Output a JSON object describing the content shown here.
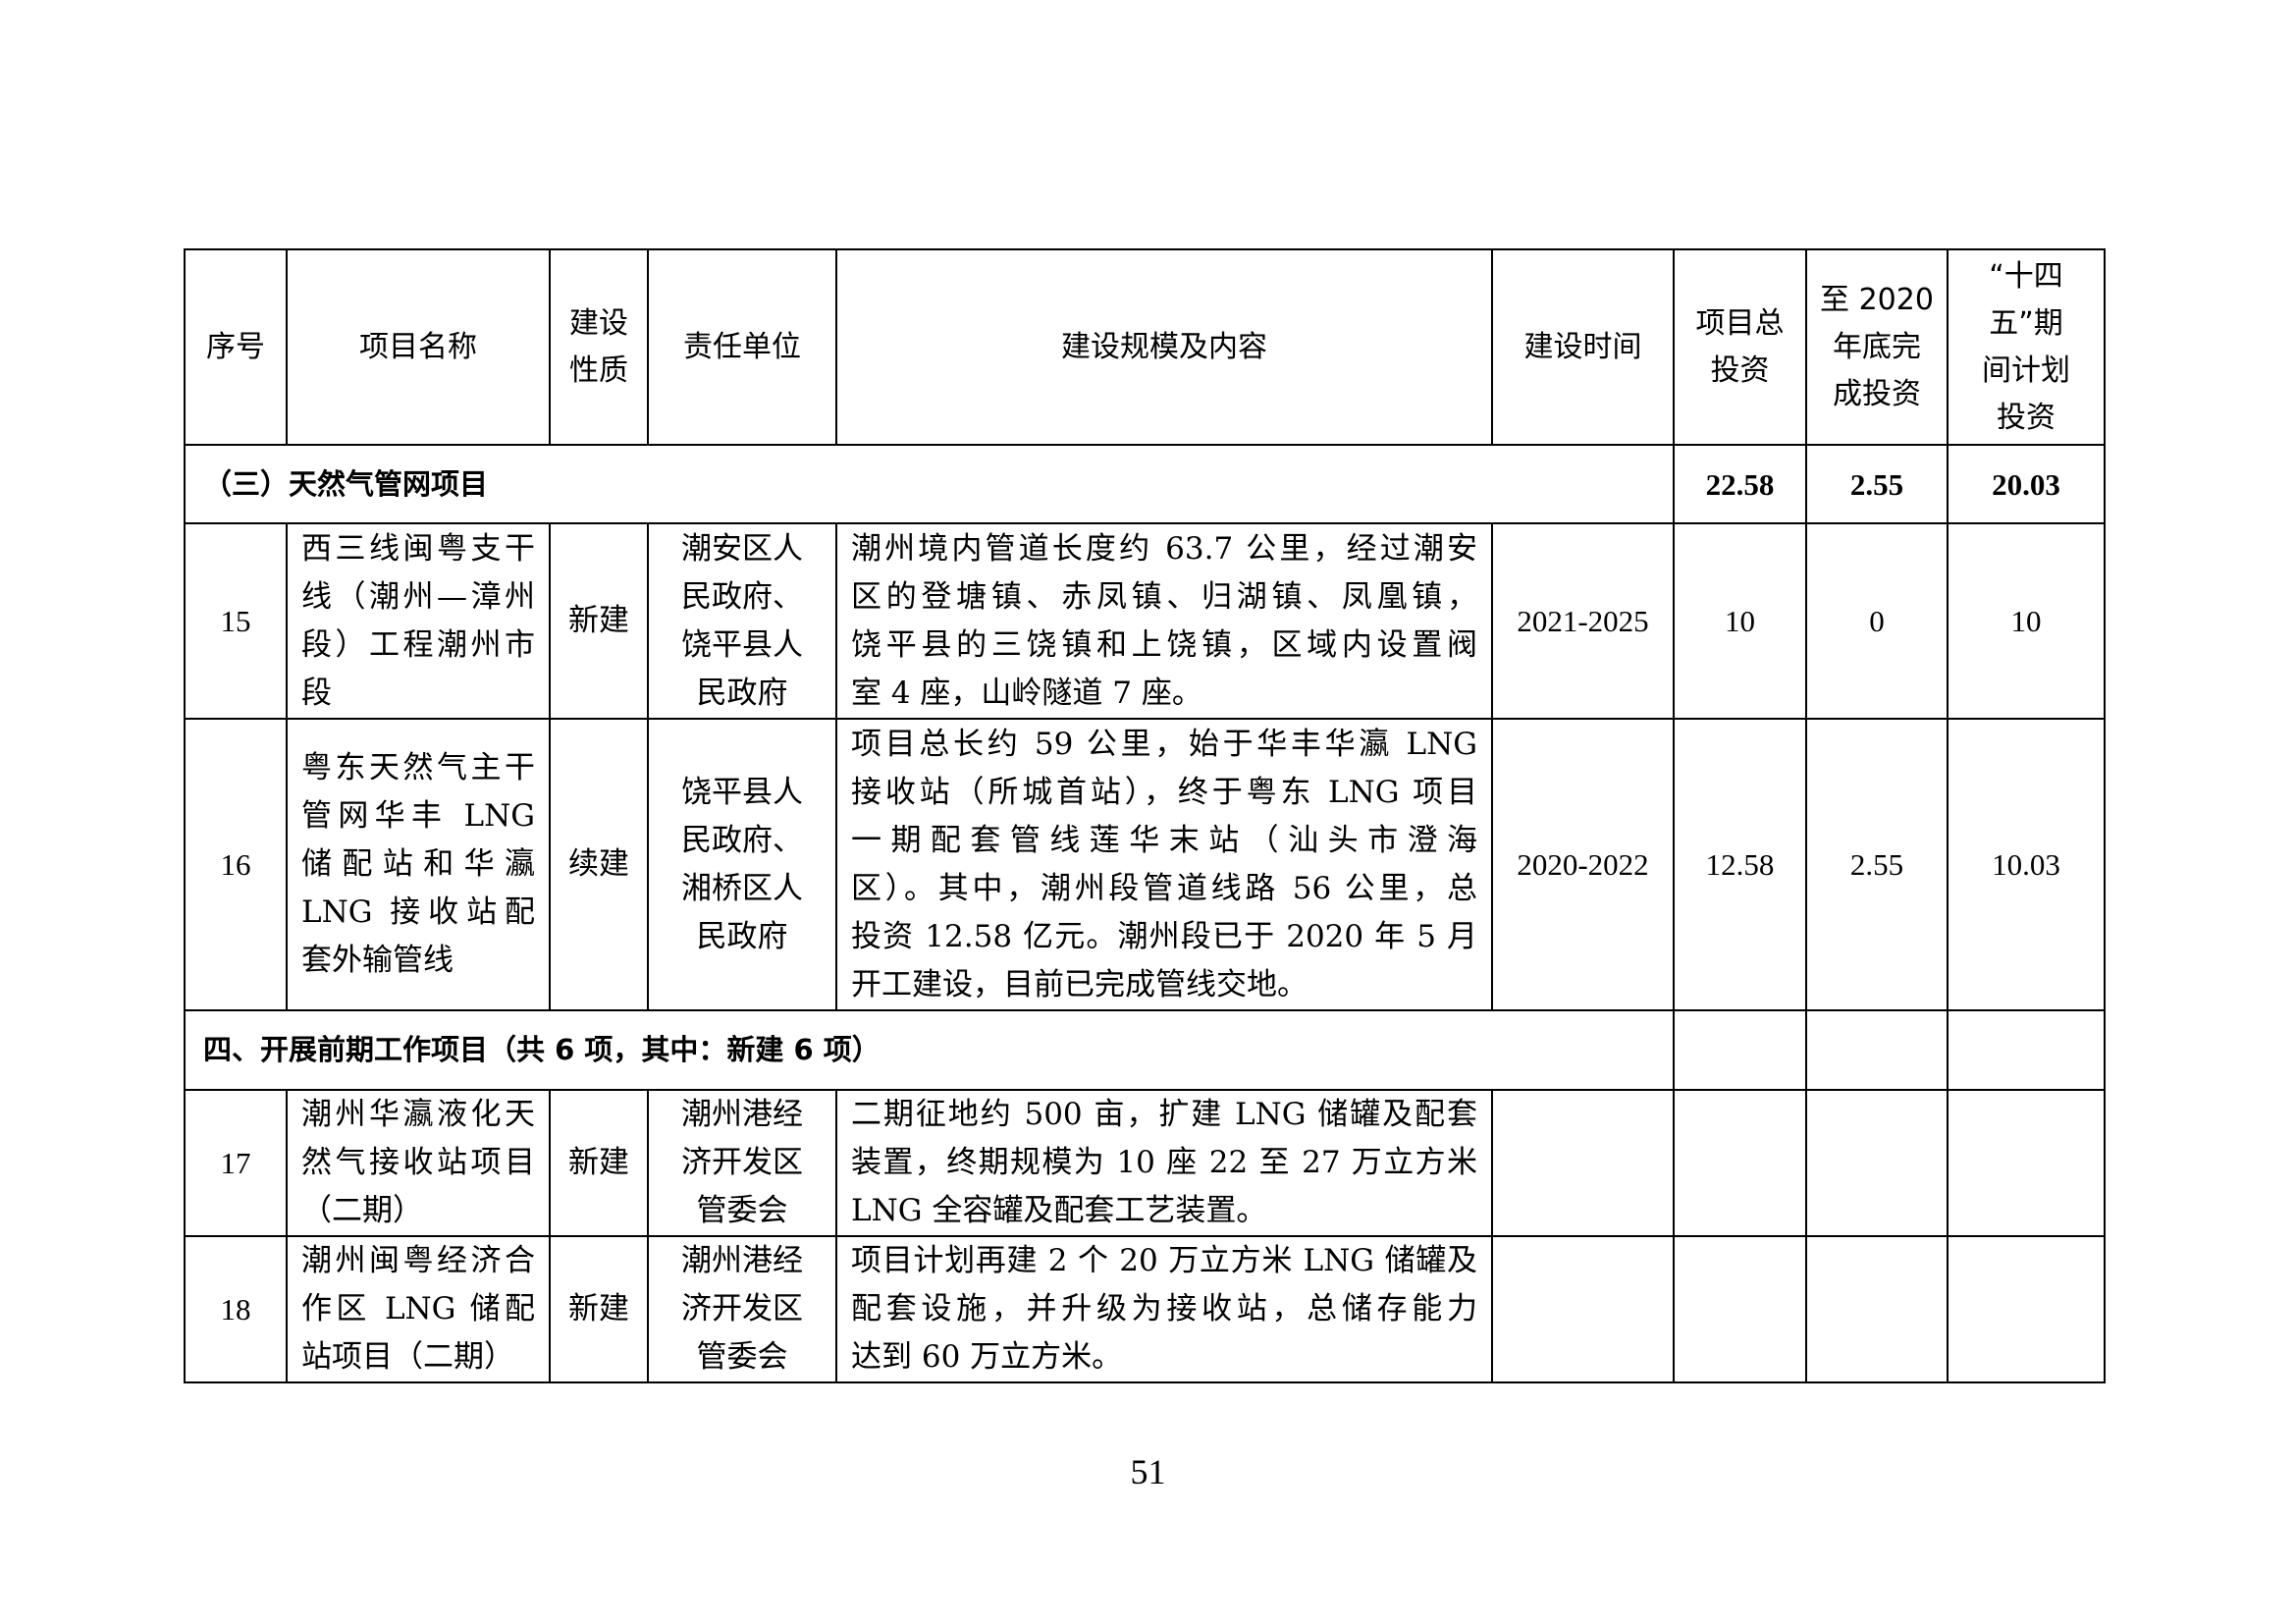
{
  "table": {
    "headers": [
      "序号",
      "项目名称",
      "建设性质",
      "责任单位",
      "建设规模及内容",
      "建设时间",
      "项目总投资",
      "至2020年底完成投资",
      "“十四五”期间计划投资"
    ],
    "header_lines": [
      [
        "序号"
      ],
      [
        "项目名称"
      ],
      [
        "建设",
        "性质"
      ],
      [
        "责任单位"
      ],
      [
        "建设规模及内容"
      ],
      [
        "建设时间"
      ],
      [
        "项目总",
        "投资"
      ],
      [
        "至 2020",
        "年底完",
        "成投资"
      ],
      [
        "“十四",
        "五”期",
        "间计划",
        "投资"
      ]
    ],
    "section3": {
      "title": "（三）天然气管网项目",
      "total": "22.58",
      "done": "2.55",
      "plan": "20.03"
    },
    "section4": {
      "title": "四、开展前期工作项目（共 6 项，其中：新建 6 项）"
    },
    "rows_a": [
      {
        "no": "15",
        "name": [
          "西三线闽粤支干",
          "线（潮州—漳州",
          "段）工程潮州市",
          "段"
        ],
        "type": "新建",
        "unit": [
          "潮安区人",
          "民政府、",
          "饶平县人",
          "民政府"
        ],
        "content": [
          "潮州境内管道长度约 63.7 公里，经过潮安",
          "区的登塘镇、赤凤镇、归湖镇、凤凰镇，",
          "饶平县的三饶镇和上饶镇，区域内设置阀",
          "室 4 座，山岭隧道 7 座。"
        ],
        "time": "2021-2025",
        "total": "10",
        "done": "0",
        "plan": "10"
      },
      {
        "no": "16",
        "name": [
          "粤东天然气主干",
          "管网华丰 LNG",
          "储配站和华瀛",
          "LNG 接收站配",
          "套外输管线"
        ],
        "type": "续建",
        "unit": [
          "饶平县人",
          "民政府、",
          "湘桥区人",
          "民政府"
        ],
        "content": [
          "项目总长约 59 公里，始于华丰华瀛 LNG",
          "接收站（所城首站），终于粤东 LNG 项目",
          "一期配套管线莲华末站（汕头市澄海",
          "区）。其中，潮州段管道线路 56 公里，总",
          "投资 12.58 亿元。潮州段已于 2020 年 5 月",
          "开工建设，目前已完成管线交地。"
        ],
        "time": "2020-2022",
        "total": "12.58",
        "done": "2.55",
        "plan": "10.03"
      }
    ],
    "rows_b": [
      {
        "no": "17",
        "name": [
          "潮州华瀛液化天",
          "然气接收站项目",
          "（二期）"
        ],
        "type": "新建",
        "unit": [
          "潮州港经",
          "济开发区",
          "管委会"
        ],
        "content": [
          "二期征地约 500 亩，扩建 LNG 储罐及配套",
          "装置，终期规模为 10 座 22 至 27 万立方米",
          "LNG 全容罐及配套工艺装置。"
        ],
        "time": "",
        "total": "",
        "done": "",
        "plan": ""
      },
      {
        "no": "18",
        "name": [
          "潮州闽粤经济合",
          "作区 LNG 储配",
          "站项目（二期）"
        ],
        "type": "新建",
        "unit": [
          "潮州港经",
          "济开发区",
          "管委会"
        ],
        "content": [
          "项目计划再建 2 个 20 万立方米 LNG 储罐及",
          "配套设施，并升级为接收站，总储存能力",
          "达到 60 万立方米。"
        ],
        "time": "",
        "total": "",
        "done": "",
        "plan": ""
      }
    ]
  },
  "page_number": "51"
}
